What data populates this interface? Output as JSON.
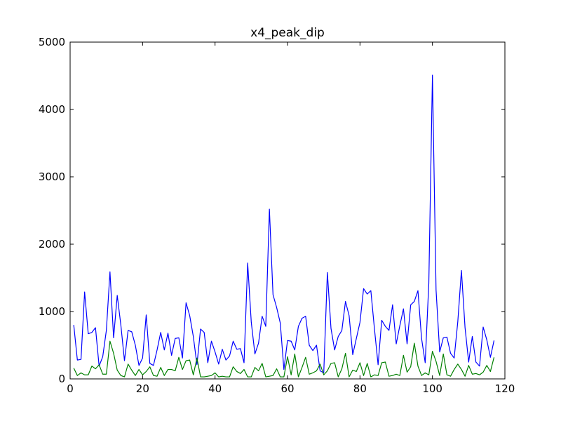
{
  "chart_data": {
    "type": "line",
    "title": "x4_peak_dip",
    "xlabel": "",
    "ylabel": "",
    "xlim": [
      0,
      120
    ],
    "ylim": [
      0,
      5000
    ],
    "xticks": [
      0,
      20,
      40,
      60,
      80,
      100,
      120
    ],
    "yticks": [
      0,
      1000,
      2000,
      3000,
      4000,
      5000
    ],
    "grid": false,
    "legend": "none",
    "x_start": 1,
    "series": [
      {
        "color": "#0000ff",
        "values": [
          800,
          280,
          290,
          1290,
          670,
          690,
          760,
          190,
          330,
          720,
          1590,
          610,
          1240,
          800,
          270,
          720,
          700,
          500,
          200,
          310,
          950,
          230,
          200,
          430,
          690,
          430,
          680,
          350,
          600,
          610,
          310,
          1130,
          940,
          630,
          210,
          740,
          690,
          240,
          560,
          400,
          220,
          440,
          280,
          340,
          560,
          440,
          450,
          240,
          1720,
          840,
          370,
          530,
          930,
          780,
          2520,
          1250,
          1060,
          830,
          140,
          570,
          560,
          430,
          780,
          900,
          930,
          500,
          420,
          500,
          120,
          90,
          1580,
          750,
          430,
          630,
          720,
          1150,
          940,
          360,
          600,
          840,
          1340,
          1260,
          1310,
          740,
          210,
          870,
          780,
          720,
          1100,
          520,
          790,
          1040,
          520,
          1100,
          1150,
          1310,
          600,
          240,
          1420,
          4510,
          1320,
          400,
          610,
          620,
          380,
          310,
          850,
          1610,
          760,
          250,
          630,
          250,
          190,
          770,
          580,
          320,
          570
        ]
      },
      {
        "color": "#008000",
        "values": [
          160,
          50,
          90,
          60,
          60,
          190,
          150,
          210,
          70,
          70,
          560,
          380,
          130,
          50,
          30,
          220,
          130,
          50,
          140,
          60,
          110,
          180,
          50,
          40,
          170,
          50,
          140,
          140,
          120,
          320,
          140,
          270,
          280,
          60,
          310,
          30,
          30,
          40,
          50,
          90,
          30,
          40,
          30,
          30,
          180,
          110,
          80,
          140,
          30,
          30,
          170,
          120,
          230,
          30,
          40,
          50,
          150,
          30,
          30,
          330,
          60,
          370,
          30,
          170,
          320,
          70,
          90,
          120,
          220,
          60,
          120,
          230,
          240,
          30,
          150,
          380,
          30,
          130,
          110,
          240,
          50,
          230,
          30,
          60,
          50,
          240,
          250,
          40,
          50,
          70,
          50,
          350,
          100,
          180,
          530,
          190,
          50,
          90,
          60,
          410,
          260,
          50,
          370,
          60,
          40,
          140,
          220,
          140,
          40,
          200,
          70,
          80,
          60,
          100,
          200,
          110,
          320
        ]
      }
    ]
  }
}
